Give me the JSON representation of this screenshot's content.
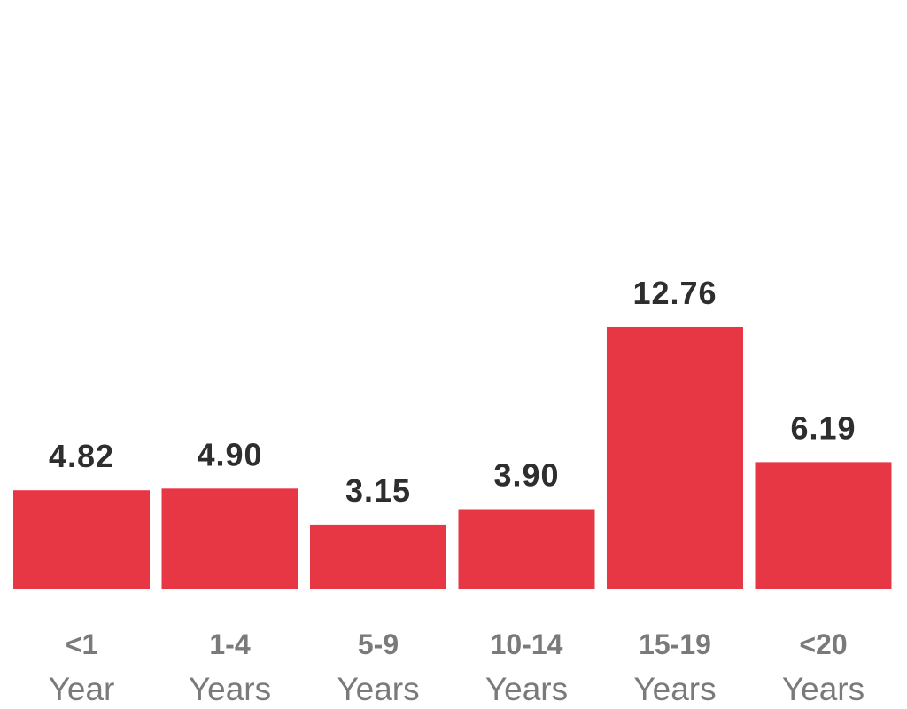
{
  "chart_data": {
    "type": "bar",
    "categories": [
      {
        "range": "<1",
        "unit": "Year"
      },
      {
        "range": "1-4",
        "unit": "Years"
      },
      {
        "range": "5-9",
        "unit": "Years"
      },
      {
        "range": "10-14",
        "unit": "Years"
      },
      {
        "range": "15-19",
        "unit": "Years"
      },
      {
        "range": "<20",
        "unit": "Years"
      }
    ],
    "values": [
      4.82,
      4.9,
      3.15,
      3.9,
      12.76,
      6.19
    ],
    "value_labels": [
      "4.82",
      "4.90",
      "3.15",
      "3.90",
      "12.76",
      "6.19"
    ],
    "title": "",
    "xlabel": "",
    "ylabel": "",
    "ylim": [
      0,
      28
    ],
    "grid": false,
    "legend": "none",
    "colors": {
      "bar": "#e73744",
      "value_label": "#2e2e2e",
      "category_label": "#7a7a7a"
    }
  }
}
